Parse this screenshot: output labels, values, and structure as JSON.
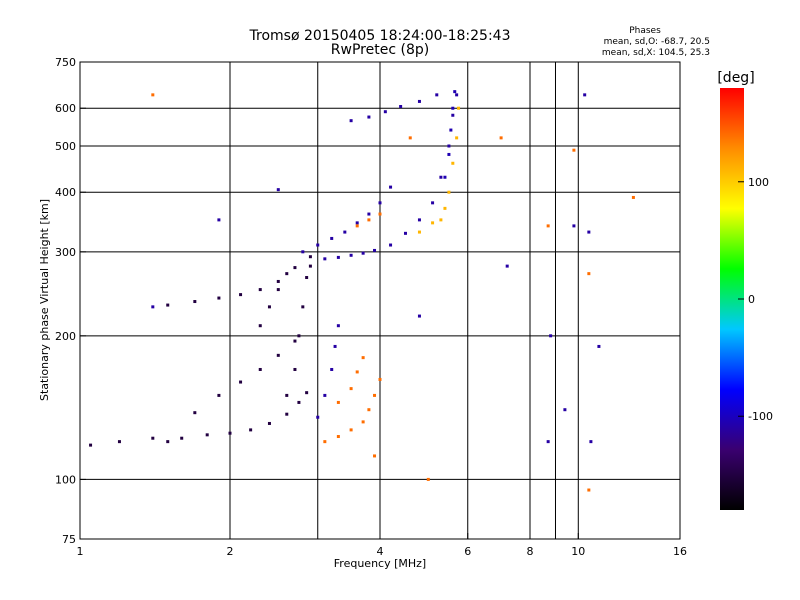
{
  "chart_data": {
    "type": "scatter",
    "title": "Tromsø 20150405 18:24:00-18:25:43",
    "subtitle": "RwPretec (8p)",
    "xlabel": "Frequency [MHz]",
    "ylabel": "Stationary phase Virtual Height [km]",
    "x_scale": "log",
    "y_scale": "log",
    "xlim": [
      1,
      16
    ],
    "ylim": [
      75,
      750
    ],
    "x_ticks": [
      "1",
      "2",
      "4",
      "6",
      "8",
      "10",
      "16"
    ],
    "x_tick_values": [
      1,
      2,
      4,
      6,
      8,
      10,
      16
    ],
    "x_grid_values": [
      1,
      2,
      3,
      4,
      6,
      8,
      9,
      10,
      16
    ],
    "y_ticks": [
      "75",
      "100",
      "200",
      "300",
      "400",
      "500",
      "600",
      "750"
    ],
    "y_tick_values": [
      75,
      100,
      200,
      300,
      400,
      500,
      600,
      750
    ],
    "y_grid_values": [
      100,
      200,
      300,
      400,
      500,
      600
    ],
    "grid": true,
    "legend_title": "Phases",
    "legend_lines": [
      "mean, sd,O: -68.7, 20.5",
      "mean, sd,X: 104.5, 25.3"
    ],
    "colorbar": {
      "label": "[deg]",
      "range": [
        -180,
        180
      ],
      "ticks": [
        "100",
        "0",
        "-100"
      ],
      "tick_values": [
        100,
        0,
        -100
      ],
      "stops": [
        "#000000",
        "#3a0070",
        "#0000ff",
        "#00c8ff",
        "#00ff00",
        "#ffff00",
        "#ff8c00",
        "#ff0000"
      ]
    },
    "traces": [
      {
        "name": "",
        "phase": -150,
        "points": [
          [
            1.05,
            118
          ],
          [
            1.2,
            120
          ],
          [
            1.4,
            122
          ],
          [
            1.6,
            122
          ],
          [
            1.8,
            124
          ],
          [
            2.0,
            125
          ],
          [
            2.2,
            127
          ],
          [
            2.4,
            131
          ],
          [
            2.6,
            137
          ],
          [
            2.75,
            145
          ],
          [
            2.85,
            152
          ]
        ]
      },
      {
        "name": "",
        "phase": -150,
        "points": [
          [
            2.6,
            150
          ],
          [
            2.7,
            170
          ],
          [
            2.75,
            200
          ],
          [
            2.8,
            230
          ],
          [
            2.85,
            265
          ],
          [
            2.9,
            280
          ]
        ]
      },
      {
        "name": "",
        "phase": -150,
        "points": [
          [
            1.5,
            232
          ],
          [
            1.7,
            236
          ],
          [
            1.9,
            240
          ],
          [
            2.1,
            244
          ],
          [
            2.3,
            250
          ],
          [
            2.5,
            260
          ],
          [
            2.7,
            278
          ],
          [
            2.9,
            293
          ]
        ]
      },
      {
        "name": "",
        "phase": -150,
        "points": [
          [
            1.5,
            120
          ],
          [
            1.7,
            138
          ],
          [
            1.9,
            150
          ],
          [
            2.1,
            160
          ],
          [
            2.3,
            170
          ],
          [
            2.5,
            182
          ],
          [
            2.7,
            195
          ]
        ]
      },
      {
        "name": "",
        "phase": -150,
        "points": [
          [
            2.3,
            210
          ],
          [
            2.4,
            230
          ],
          [
            2.5,
            250
          ],
          [
            2.6,
            270
          ]
        ]
      },
      {
        "name": "",
        "phase": -110,
        "points": [
          [
            3.0,
            135
          ],
          [
            3.1,
            150
          ],
          [
            3.2,
            170
          ],
          [
            3.25,
            190
          ],
          [
            3.3,
            210
          ]
        ]
      },
      {
        "name": "",
        "phase": -110,
        "points": [
          [
            3.1,
            290
          ],
          [
            3.3,
            292
          ],
          [
            3.5,
            295
          ],
          [
            3.7,
            298
          ],
          [
            3.9,
            302
          ],
          [
            4.2,
            310
          ],
          [
            4.5,
            328
          ],
          [
            4.8,
            350
          ],
          [
            5.1,
            380
          ],
          [
            5.3,
            430
          ],
          [
            5.5,
            500
          ],
          [
            5.6,
            580
          ],
          [
            5.7,
            640
          ]
        ]
      },
      {
        "name": "",
        "phase": -110,
        "points": [
          [
            2.8,
            300
          ],
          [
            3.0,
            310
          ],
          [
            3.2,
            320
          ],
          [
            3.4,
            330
          ],
          [
            3.6,
            345
          ],
          [
            3.8,
            360
          ],
          [
            4.0,
            380
          ],
          [
            4.2,
            410
          ]
        ]
      },
      {
        "name": "",
        "phase": -110,
        "points": [
          [
            3.5,
            565
          ],
          [
            3.8,
            575
          ],
          [
            4.1,
            590
          ],
          [
            4.4,
            605
          ],
          [
            4.8,
            620
          ],
          [
            5.2,
            640
          ]
        ]
      },
      {
        "name": "",
        "phase": -105,
        "points": [
          [
            5.4,
            430
          ],
          [
            5.5,
            480
          ],
          [
            5.55,
            540
          ],
          [
            5.6,
            600
          ],
          [
            5.65,
            650
          ]
        ]
      },
      {
        "name": "",
        "phase": 140,
        "points": [
          [
            3.1,
            120
          ],
          [
            3.3,
            123
          ],
          [
            3.5,
            127
          ],
          [
            3.7,
            132
          ],
          [
            3.8,
            140
          ],
          [
            3.9,
            150
          ],
          [
            4.0,
            162
          ]
        ]
      },
      {
        "name": "",
        "phase": 140,
        "points": [
          [
            3.3,
            145
          ],
          [
            3.5,
            155
          ],
          [
            3.6,
            168
          ],
          [
            3.7,
            180
          ]
        ]
      },
      {
        "name": "",
        "phase": 140,
        "points": [
          [
            3.6,
            340
          ],
          [
            3.8,
            350
          ],
          [
            4.0,
            360
          ]
        ]
      },
      {
        "name": "",
        "phase": 110,
        "points": [
          [
            5.3,
            350
          ],
          [
            5.5,
            400
          ],
          [
            5.6,
            460
          ],
          [
            5.7,
            520
          ],
          [
            5.75,
            600
          ]
        ]
      },
      {
        "name": "",
        "phase": 110,
        "points": [
          [
            4.8,
            330
          ],
          [
            5.1,
            345
          ],
          [
            5.4,
            370
          ]
        ]
      },
      {
        "name": "",
        "phase": 140,
        "points": [
          [
            1.4,
            640
          ],
          [
            4.6,
            520
          ],
          [
            7.0,
            520
          ],
          [
            8.7,
            340
          ],
          [
            9.8,
            490
          ],
          [
            10.5,
            270
          ],
          [
            12.9,
            390
          ],
          [
            5.0,
            100
          ],
          [
            10.5,
            95
          ],
          [
            3.9,
            112
          ]
        ]
      },
      {
        "name": "",
        "phase": -110,
        "points": [
          [
            1.9,
            350
          ],
          [
            7.2,
            280
          ],
          [
            8.8,
            200
          ],
          [
            9.8,
            340
          ],
          [
            10.5,
            330
          ],
          [
            10.3,
            640
          ],
          [
            8.7,
            120
          ],
          [
            10.6,
            120
          ],
          [
            11.0,
            190
          ],
          [
            9.4,
            140
          ],
          [
            4.8,
            220
          ],
          [
            2.5,
            405
          ],
          [
            1.4,
            230
          ]
        ]
      }
    ]
  }
}
